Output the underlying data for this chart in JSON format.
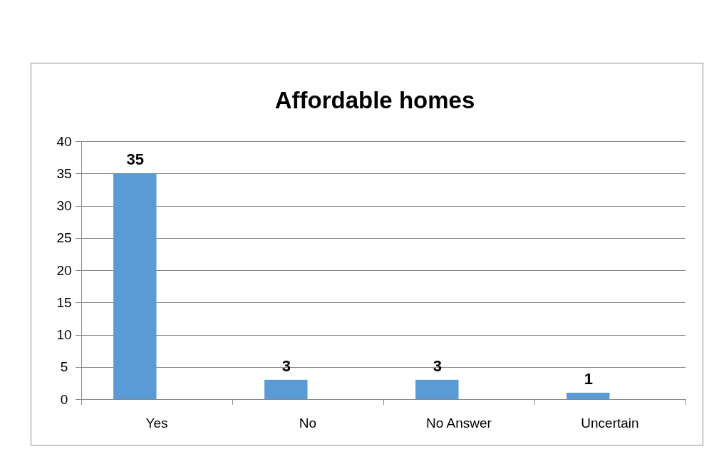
{
  "chart_data": {
    "type": "bar",
    "title": "Affordable homes",
    "categories": [
      "Yes",
      "No",
      "No Answer",
      "Uncertain"
    ],
    "values": [
      35,
      3,
      3,
      1
    ],
    "color": "#5b9bd5",
    "ylim": [
      0,
      40
    ],
    "yticks": [
      0,
      5,
      10,
      15,
      20,
      25,
      30,
      35,
      40
    ],
    "grid": "y",
    "data_labels": true
  }
}
